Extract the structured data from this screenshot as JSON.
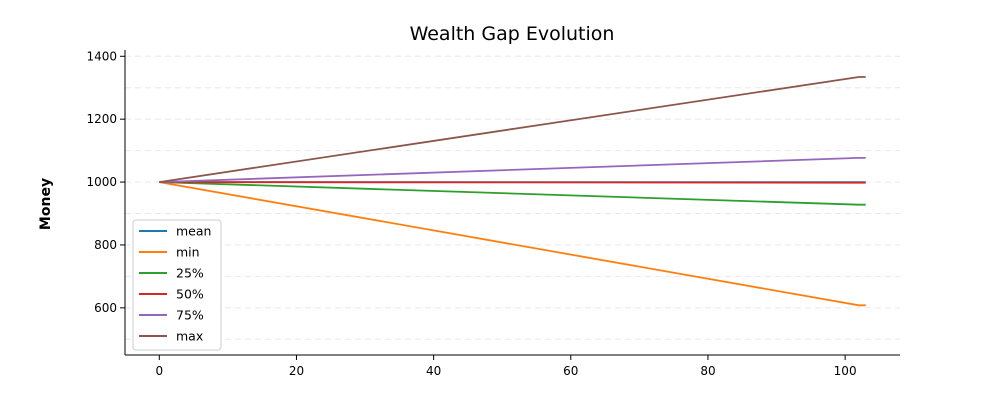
{
  "chart_data": {
    "type": "line",
    "title": "Wealth Gap Evolution",
    "xlabel": "",
    "ylabel": "Money",
    "xlim": [
      -5,
      108
    ],
    "ylim": [
      450,
      1420
    ],
    "x_ticks": [
      0,
      20,
      40,
      60,
      80,
      100
    ],
    "y_ticks": [
      600,
      800,
      1000,
      1200,
      1400
    ],
    "grid": "horizontal dashed",
    "legend_position": "lower-left",
    "series": [
      {
        "name": "mean",
        "color": "#1f77b4",
        "x": [
          0,
          102,
          103
        ],
        "y": [
          1000,
          1000,
          1000
        ]
      },
      {
        "name": "min",
        "color": "#ff7f0e",
        "x": [
          0,
          102,
          103
        ],
        "y": [
          1000,
          608,
          608
        ]
      },
      {
        "name": "25%",
        "color": "#2ca02c",
        "x": [
          0,
          102,
          103
        ],
        "y": [
          1000,
          928,
          928
        ]
      },
      {
        "name": "50%",
        "color": "#d62728",
        "x": [
          0,
          102,
          103
        ],
        "y": [
          1000,
          998,
          998
        ]
      },
      {
        "name": "75%",
        "color": "#9467bd",
        "x": [
          0,
          102,
          103
        ],
        "y": [
          1000,
          1077,
          1077
        ]
      },
      {
        "name": "max",
        "color": "#8c564b",
        "x": [
          0,
          102,
          103
        ],
        "y": [
          1000,
          1334,
          1334
        ]
      }
    ]
  }
}
